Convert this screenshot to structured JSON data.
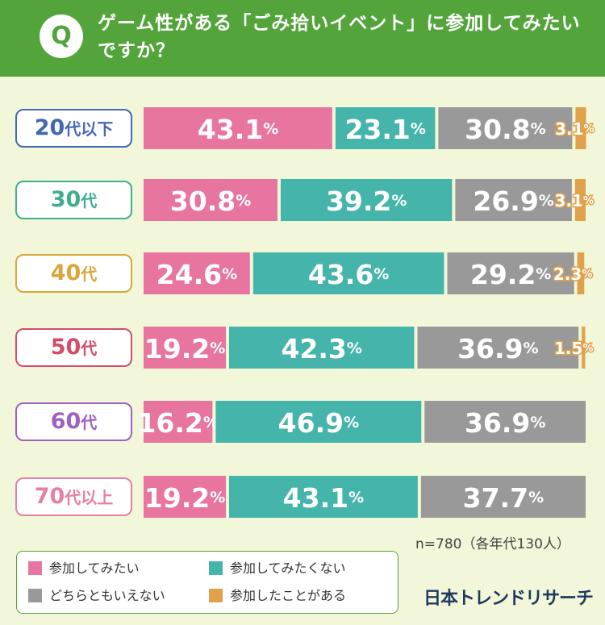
{
  "header": {
    "badge": "Q",
    "question": "ゲーム性がある「ごみ拾いイベント」に参加してみたいですか？"
  },
  "colors": {
    "header_bg": "#52a43b",
    "background": "#f1f7d8",
    "want": "#e8759f",
    "not_want": "#45b5ac",
    "neither": "#999999",
    "participated": "#e1a14a"
  },
  "chart_data": {
    "type": "bar",
    "orientation": "horizontal-stacked-100",
    "categories": [
      "20代以下",
      "30代",
      "40代",
      "50代",
      "60代",
      "70代以上"
    ],
    "category_colors": [
      "#4469b3",
      "#3fae8f",
      "#d9a53c",
      "#d34d6a",
      "#a060c0",
      "#e47fa6"
    ],
    "series": [
      {
        "name": "参加してみたい",
        "color": "#e8759f",
        "values": [
          43.1,
          30.8,
          24.6,
          19.2,
          16.2,
          19.2
        ]
      },
      {
        "name": "参加してみたくない",
        "color": "#45b5ac",
        "values": [
          23.1,
          39.2,
          43.6,
          42.3,
          46.9,
          43.1
        ]
      },
      {
        "name": "どちらともいえない",
        "color": "#999999",
        "values": [
          30.8,
          26.9,
          29.2,
          36.9,
          36.9,
          37.7
        ]
      },
      {
        "name": "参加したことがある",
        "color": "#e1a14a",
        "values": [
          3.1,
          3.1,
          2.3,
          1.5,
          0,
          0
        ]
      }
    ],
    "unit": "%",
    "xlim": [
      0,
      100
    ]
  },
  "age_groups": [
    {
      "main": "20",
      "suffix": "代以下"
    },
    {
      "main": "30",
      "suffix": "代"
    },
    {
      "main": "40",
      "suffix": "代"
    },
    {
      "main": "50",
      "suffix": "代"
    },
    {
      "main": "60",
      "suffix": "代"
    },
    {
      "main": "70",
      "suffix": "代以上"
    }
  ],
  "sample_note": "n=780（各年代130人）",
  "legend": [
    "参加してみたい",
    "参加してみたくない",
    "どちらともいえない",
    "参加したことがある"
  ],
  "brand": "日本トレンドリサーチ"
}
